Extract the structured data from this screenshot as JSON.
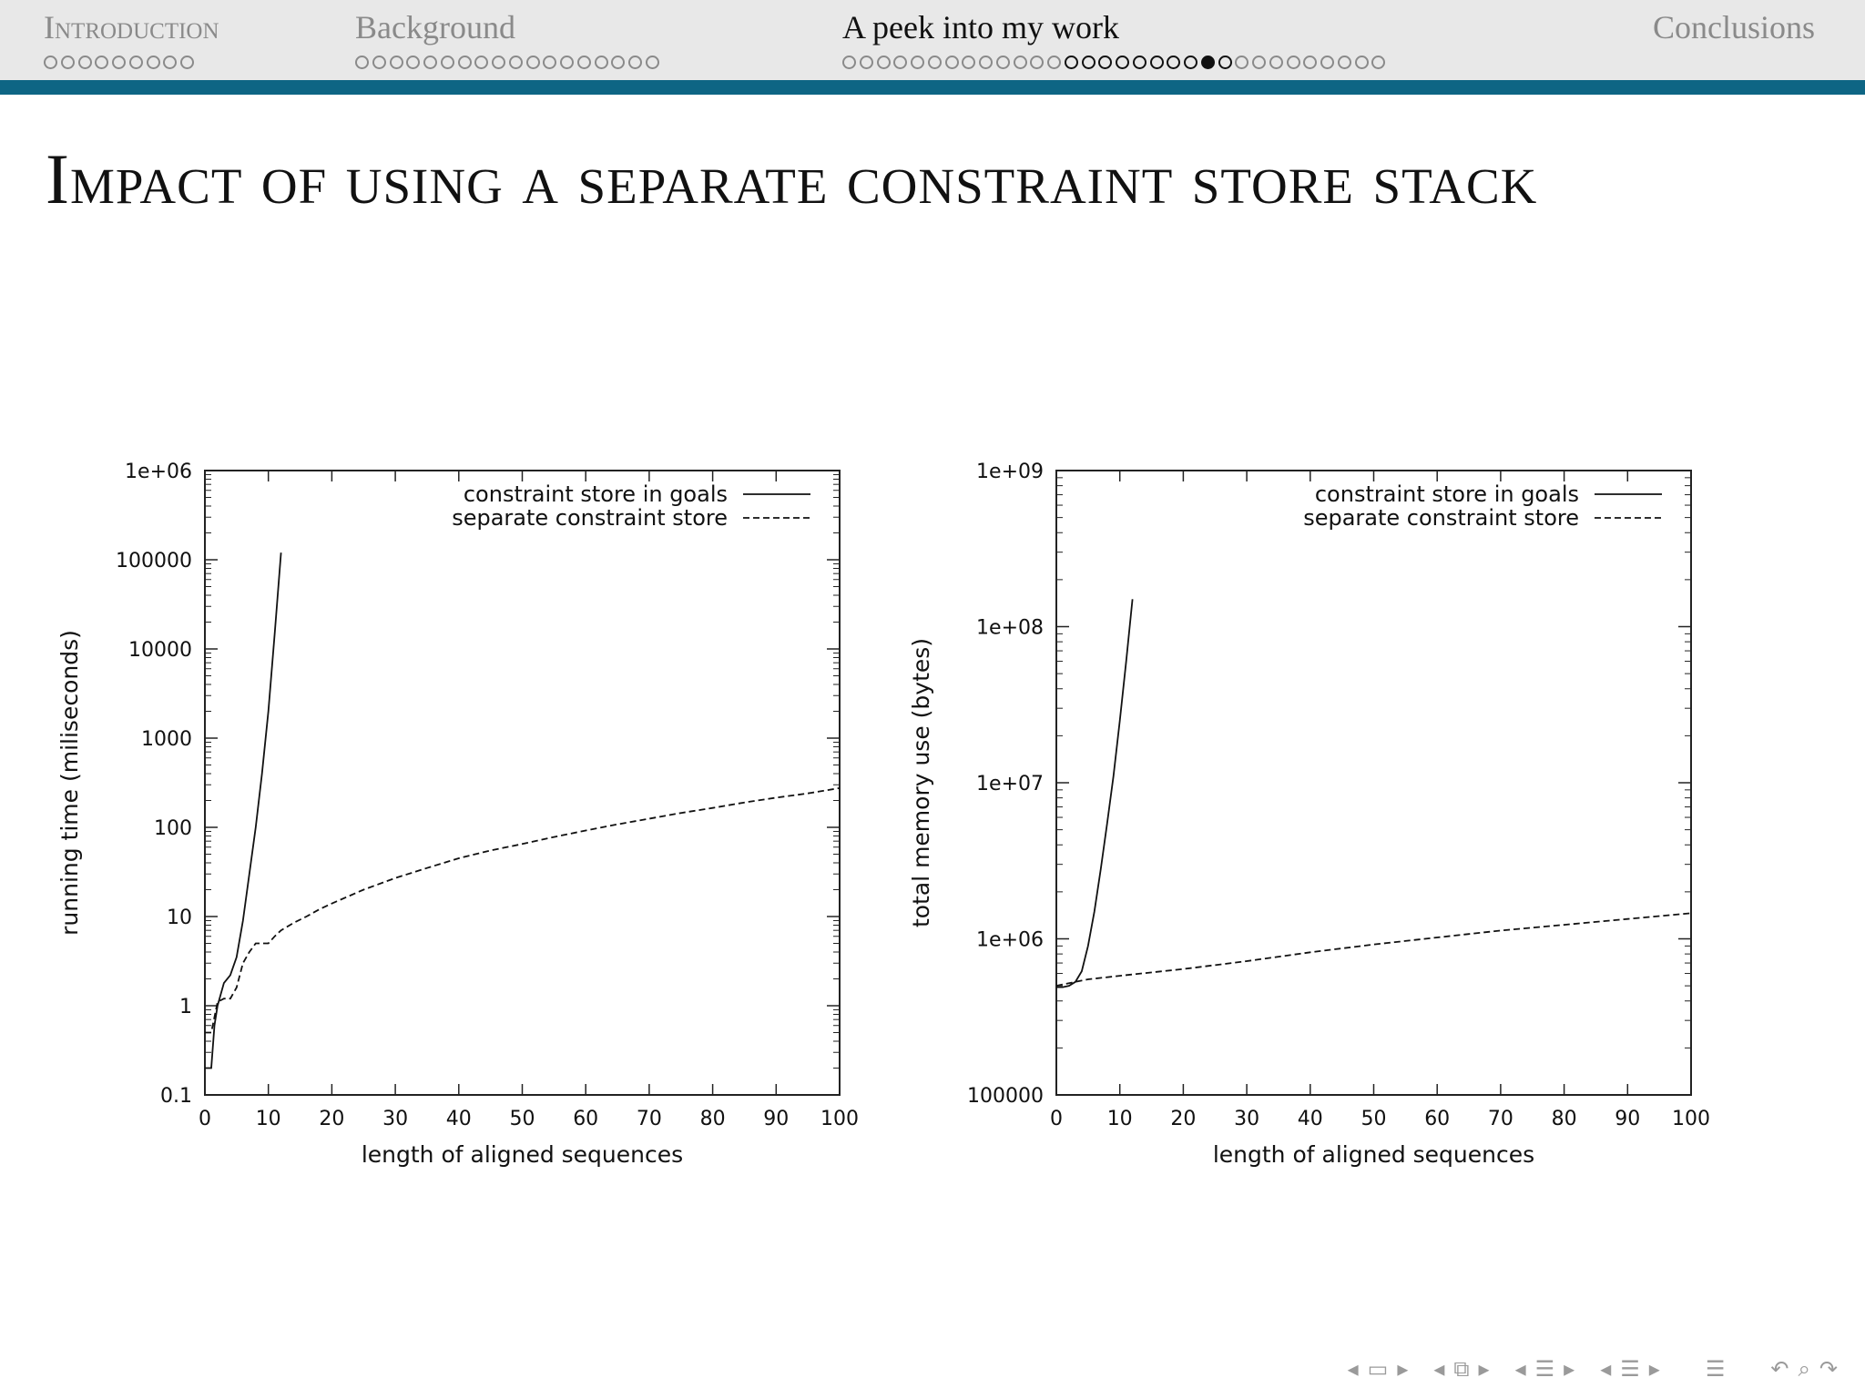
{
  "headline": {
    "sections": [
      {
        "title": "Introduction",
        "dots": 9,
        "active": false
      },
      {
        "title": "Background",
        "dots": 18,
        "active": false
      },
      {
        "title": "A peek into my work",
        "dots": 32,
        "active": true,
        "active_dots_from": 13,
        "active_dots_to": 22,
        "current_dot": 21
      },
      {
        "title": "Conclusions",
        "dots": 0,
        "active": false
      }
    ]
  },
  "frame": {
    "title": "Impact of using a separate constraint store stack"
  },
  "colors": {
    "headline_bar": "#0e6584",
    "headline_bg": "#e8e8e8"
  },
  "chart_data": [
    {
      "type": "line",
      "xlabel": "length of aligned sequences",
      "ylabel": "running time (miliseconds)",
      "xlim": [
        0,
        100
      ],
      "ylim": [
        0.1,
        1000000
      ],
      "yscale": "log",
      "xticks": [
        "0",
        "10",
        "20",
        "30",
        "40",
        "50",
        "60",
        "70",
        "80",
        "90",
        "100"
      ],
      "yticks": [
        "0.1",
        "1",
        "10",
        "100",
        "1000",
        "10000",
        "100000",
        "1e+06"
      ],
      "legend_position": "top-right",
      "series": [
        {
          "name": "constraint store in goals",
          "style": "solid",
          "x": [
            0,
            1,
            1.5,
            2,
            3,
            4,
            5,
            6,
            7,
            8,
            9,
            10,
            11,
            12
          ],
          "y": [
            0.2,
            0.2,
            0.6,
            1,
            1.8,
            2.2,
            3.5,
            9,
            30,
            100,
            400,
            2000,
            15000,
            120000
          ]
        },
        {
          "name": "separate constraint store",
          "style": "dashed",
          "x": [
            0,
            1,
            2,
            3,
            4,
            5,
            6,
            7,
            8,
            9,
            10,
            11,
            12,
            14,
            16,
            18,
            20,
            25,
            30,
            35,
            40,
            45,
            50,
            55,
            60,
            65,
            70,
            75,
            80,
            85,
            90,
            95,
            100
          ],
          "y": [
            0.5,
            0.5,
            1.1,
            1.2,
            1.2,
            1.6,
            3,
            4,
            5,
            5,
            5,
            6,
            7,
            8.5,
            10,
            12,
            14,
            20,
            27,
            35,
            45,
            55,
            65,
            78,
            92,
            108,
            125,
            145,
            165,
            190,
            215,
            240,
            275
          ]
        }
      ]
    },
    {
      "type": "line",
      "xlabel": "length of aligned sequences",
      "ylabel": "total memory use (bytes)",
      "xlim": [
        0,
        100
      ],
      "ylim": [
        100000,
        1000000000
      ],
      "yscale": "log",
      "xticks": [
        "0",
        "10",
        "20",
        "30",
        "40",
        "50",
        "60",
        "70",
        "80",
        "90",
        "100"
      ],
      "yticks": [
        "100000",
        "1e+06",
        "1e+07",
        "1e+08",
        "1e+09"
      ],
      "legend_position": "top-right",
      "series": [
        {
          "name": "constraint store in goals",
          "style": "solid",
          "x": [
            0,
            1,
            2,
            3,
            4,
            5,
            6,
            7,
            8,
            9,
            10,
            11,
            12
          ],
          "y": [
            490000,
            490000,
            500000,
            530000,
            620000,
            900000,
            1500000,
            2800000,
            5500000,
            11000000,
            25000000,
            60000000,
            150000000
          ]
        },
        {
          "name": "separate constraint store",
          "style": "dashed",
          "x": [
            0,
            2,
            5,
            10,
            20,
            30,
            40,
            50,
            60,
            70,
            80,
            90,
            100
          ],
          "y": [
            500000,
            520000,
            550000,
            580000,
            640000,
            720000,
            820000,
            920000,
            1020000,
            1130000,
            1230000,
            1340000,
            1460000
          ]
        }
      ]
    }
  ]
}
